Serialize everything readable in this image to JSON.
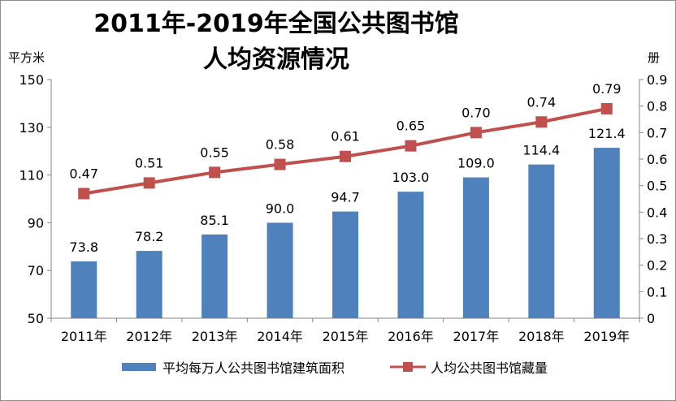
{
  "chart_data": {
    "type": "bar+line",
    "title_line1": "2011年-2019年全国公共图书馆",
    "title_line2": "人均资源情况",
    "left_unit": "平方米",
    "right_unit": "册",
    "categories": [
      "2011年",
      "2012年",
      "2013年",
      "2014年",
      "2015年",
      "2016年",
      "2017年",
      "2018年",
      "2019年"
    ],
    "y_left": {
      "min": 50,
      "max": 150,
      "ticks": [
        "50",
        "70",
        "90",
        "110",
        "130",
        "150"
      ]
    },
    "y_right": {
      "min": 0,
      "max": 0.9,
      "ticks": [
        "0",
        "0.1",
        "0.2",
        "0.3",
        "0.4",
        "0.5",
        "0.6",
        "0.7",
        "0.8",
        "0.9"
      ]
    },
    "bar_series": {
      "name": "平均每万人公共图书馆建筑面积",
      "values": [
        73.8,
        78.2,
        85.1,
        90.0,
        94.7,
        103.0,
        109.0,
        114.4,
        121.4
      ],
      "labels": [
        "73.8",
        "78.2",
        "85.1",
        "90.0",
        "94.7",
        "103.0",
        "109.0",
        "114.4",
        "121.4"
      ],
      "color": "#4f81bd"
    },
    "line_series": {
      "name": "人均公共图书馆藏量",
      "values": [
        0.47,
        0.51,
        0.55,
        0.58,
        0.61,
        0.65,
        0.7,
        0.74,
        0.79
      ],
      "labels": [
        "0.47",
        "0.51",
        "0.55",
        "0.58",
        "0.61",
        "0.65",
        "0.70",
        "0.74",
        "0.79"
      ],
      "color": "#c0504d"
    },
    "grid": false,
    "legend_position": "bottom"
  }
}
